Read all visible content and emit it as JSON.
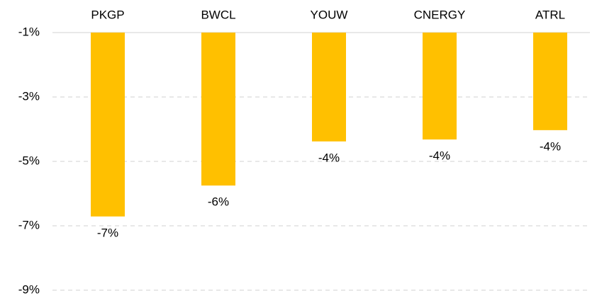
{
  "chart_data": {
    "type": "bar",
    "categories": [
      "PKGP",
      "BWCL",
      "YOUW",
      "CNERGY",
      "ATRL"
    ],
    "values": [
      -6.71,
      -5.75,
      -4.38,
      -4.32,
      -4.03
    ],
    "value_labels": [
      "-7%",
      "-6%",
      "-4%",
      "-4%",
      "-4%"
    ],
    "color": "#ffc000",
    "ylim": [
      -9,
      -1
    ],
    "yticks": [
      {
        "value": -1,
        "label": "-1%"
      },
      {
        "value": -3,
        "label": "-3%"
      },
      {
        "value": -5,
        "label": "-5%"
      },
      {
        "value": -7,
        "label": "-7%"
      },
      {
        "value": -9,
        "label": "-9%"
      }
    ],
    "grid": true
  }
}
